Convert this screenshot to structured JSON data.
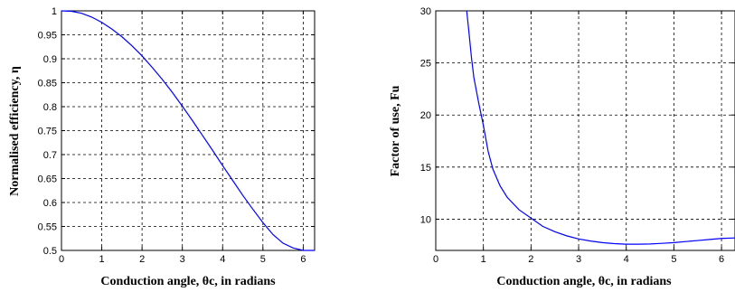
{
  "chart_data": [
    {
      "type": "line",
      "xlabel": "Conduction angle, θc, in radians",
      "ylabel": "Normalised efficiency, η",
      "xlim": [
        0,
        6.2832
      ],
      "ylim": [
        0.5,
        1
      ],
      "xticks": [
        0,
        1,
        2,
        3,
        4,
        5,
        6
      ],
      "yticks": [
        0.5,
        0.55,
        0.6,
        0.65,
        0.7,
        0.75,
        0.8,
        0.85,
        0.9,
        0.95,
        1
      ],
      "ytick_labels": [
        "0.5",
        "0.55",
        "0.6",
        "0.65",
        "0.7",
        "0.75",
        "0.8",
        "0.85",
        "0.9",
        "0.95",
        "1"
      ],
      "grid": true,
      "series": [
        {
          "x": [
            0,
            0.25,
            0.5,
            0.75,
            1,
            1.25,
            1.5,
            1.75,
            2,
            2.25,
            2.5,
            2.75,
            3,
            3.25,
            3.5,
            3.75,
            4,
            4.25,
            4.5,
            4.75,
            5,
            5.25,
            5.5,
            5.75,
            6,
            6.2832
          ],
          "y": [
            1,
            0.999,
            0.995,
            0.987,
            0.976,
            0.962,
            0.946,
            0.927,
            0.906,
            0.882,
            0.857,
            0.83,
            0.801,
            0.771,
            0.74,
            0.709,
            0.677,
            0.646,
            0.615,
            0.586,
            0.558,
            0.533,
            0.515,
            0.505,
            0.5,
            0.5
          ],
          "color": "#0000ff"
        }
      ]
    },
    {
      "type": "line",
      "xlabel": "Conduction angle, θc, in radians",
      "ylabel": "Factor of use, Fu",
      "xlim": [
        0,
        6.2832
      ],
      "ylim": [
        7,
        30
      ],
      "xticks": [
        0,
        1,
        2,
        3,
        4,
        5,
        6
      ],
      "yticks": [
        10,
        15,
        20,
        25,
        30
      ],
      "ytick_labels": [
        "10",
        "15",
        "20",
        "25",
        "30"
      ],
      "grid": true,
      "series": [
        {
          "x": [
            0.65,
            0.7,
            0.75,
            0.8,
            0.9,
            1,
            1.1,
            1.2,
            1.35,
            1.5,
            1.75,
            2,
            2.25,
            2.5,
            2.75,
            3,
            3.25,
            3.5,
            3.75,
            4,
            4.25,
            4.5,
            4.75,
            5,
            5.25,
            5.5,
            5.75,
            6,
            6.2832
          ],
          "y": [
            30,
            27.8,
            25.5,
            23.6,
            21.2,
            19,
            16.5,
            14.8,
            13.2,
            12.1,
            10.9,
            10.1,
            9.3,
            8.8,
            8.4,
            8.1,
            7.9,
            7.75,
            7.65,
            7.6,
            7.6,
            7.62,
            7.68,
            7.75,
            7.85,
            7.95,
            8.05,
            8.15,
            8.2
          ],
          "color": "#0000ff"
        }
      ]
    }
  ]
}
